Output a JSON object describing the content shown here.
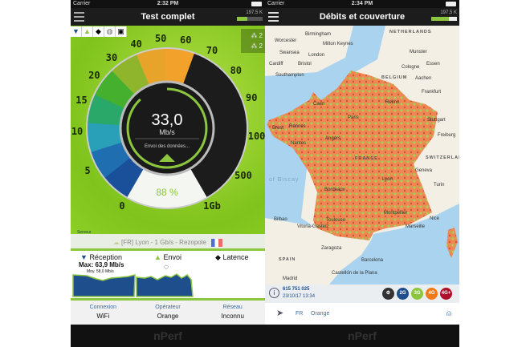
{
  "left": {
    "status": {
      "carrier": "Carrier",
      "time": "2:32 PM"
    },
    "header": {
      "title": "Test complet",
      "quota": "197,5 K"
    },
    "toolbar": [
      "download-icon",
      "upload-icon",
      "latency-icon",
      "globe-icon",
      "screen-icon"
    ],
    "peers": [
      "2",
      "2"
    ],
    "gauge": {
      "labels": [
        "0",
        "5",
        "10",
        "15",
        "20",
        "30",
        "40",
        "50",
        "60",
        "70",
        "80",
        "90",
        "100",
        "500",
        "1Gb"
      ],
      "speed": "33,0",
      "unit": "Mb/s",
      "status": "Envoi des données...",
      "progress": "88 %",
      "progress_value": 88,
      "server_label": "Serveur",
      "brand": "nPerf"
    },
    "server": "[FR] Lyon - 1 Gb/s - Rezopole",
    "stats": {
      "reception": "Réception",
      "max": "Max: 63,9 Mb/s",
      "avg": "Moy. 58,0 Mb/s",
      "envoi": "Envoi",
      "latence": "Latence"
    },
    "info": [
      {
        "key": "Connexion",
        "value": "WiFi"
      },
      {
        "key": "Opérateur",
        "value": "Orange"
      },
      {
        "key": "Réseau",
        "value": "Inconnu"
      }
    ],
    "footer": "nPerf"
  },
  "right": {
    "status": {
      "carrier": "Carrier",
      "time": "2:34 PM"
    },
    "header": {
      "title": "Débits et couverture",
      "quota": "197,5 K"
    },
    "map_labels": [
      "Birmingham",
      "Worcester",
      "Milton Keynes",
      "Swansea",
      "London",
      "Cardiff",
      "Bristol",
      "Southampton",
      "NETHERLANDS",
      "Munster",
      "Essen",
      "Cologne",
      "BELGIUM",
      "Aachen",
      "Frankfurt",
      "Reims",
      "Caen",
      "Paris",
      "Stuttgart",
      "Brest",
      "Rennes",
      "Freiburg",
      "Angers",
      "Nantes",
      "FRANCE",
      "SWITZERLAND",
      "Geneva",
      "Lyon",
      "Turin",
      "of Biscay",
      "Bordeaux",
      "Toulouse",
      "Montpellier",
      "Nice",
      "Marseille",
      "Bilbao",
      "Vitoria-Gasteiz",
      "Zaragoza",
      "SPAIN",
      "Barcelona",
      "Madrid",
      "Castellón de la Plana"
    ],
    "map_info": {
      "count": "615 751 025",
      "date": "23/10/17 13:34"
    },
    "tech_filters": [
      {
        "label": "",
        "color": "#333333"
      },
      {
        "label": "2G",
        "color": "#1f4e8c"
      },
      {
        "label": "3G",
        "color": "#8cc63f"
      },
      {
        "label": "4G",
        "color": "#f07a1a"
      },
      {
        "label": "4G+",
        "color": "#b0102a"
      }
    ],
    "location": {
      "country": "FR",
      "operator": "Orange"
    },
    "footer": "nPerf"
  }
}
